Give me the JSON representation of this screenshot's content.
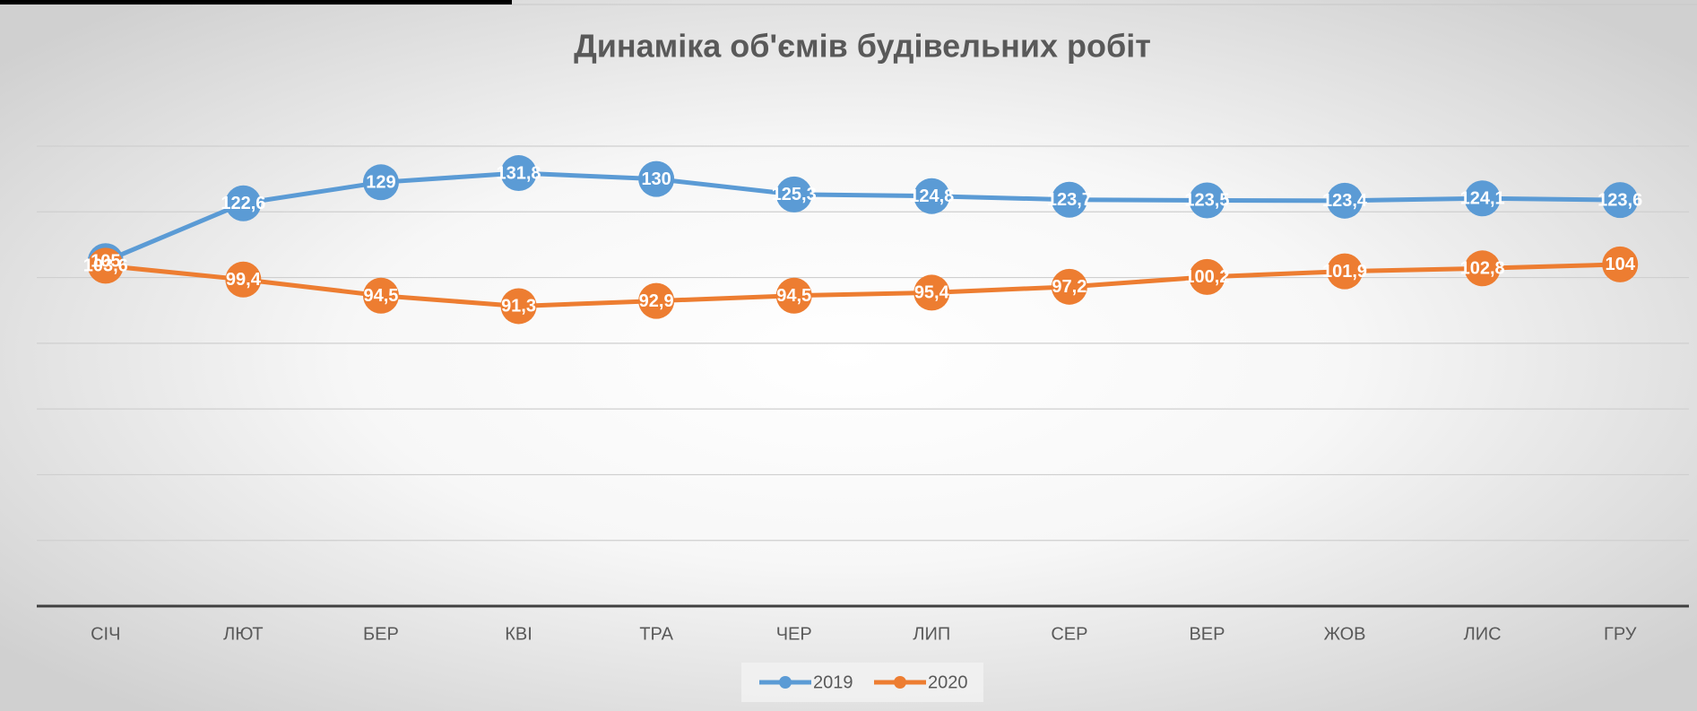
{
  "chart_data": {
    "type": "line",
    "title": "Динаміка об'ємів будівельних робіт",
    "categories": [
      "СІЧ",
      "ЛЮТ",
      "БЕР",
      "КВІ",
      "ТРА",
      "ЧЕР",
      "ЛИП",
      "СЕР",
      "ВЕР",
      "ЖОВ",
      "ЛИС",
      "ГРУ"
    ],
    "series": [
      {
        "name": "2019",
        "color": "#5b9bd5",
        "values": [
          105,
          122.6,
          129,
          131.8,
          130,
          125.3,
          124.8,
          123.7,
          123.5,
          123.4,
          124.1,
          123.6
        ],
        "value_labels": [
          "105",
          "122,6",
          "129",
          "131,8",
          "130",
          "125,3",
          "124,8",
          "123,7",
          "123,5",
          "123,4",
          "124,1",
          "123,6"
        ]
      },
      {
        "name": "2020",
        "color": "#ed7d31",
        "values": [
          103.6,
          99.4,
          94.5,
          91.3,
          92.9,
          94.5,
          95.4,
          97.2,
          100.2,
          101.9,
          102.8,
          104
        ],
        "value_labels": [
          "103,6",
          "99,4",
          "94,5",
          "91,3",
          "92,9",
          "94,5",
          "95,4",
          "97,2",
          "100,2",
          "101,9",
          "102,8",
          "104"
        ]
      }
    ],
    "ylim": [
      0,
      140
    ],
    "yticks": [
      0,
      20,
      40,
      60,
      80,
      100,
      120,
      140
    ],
    "grid": true,
    "legend": "bottom"
  }
}
